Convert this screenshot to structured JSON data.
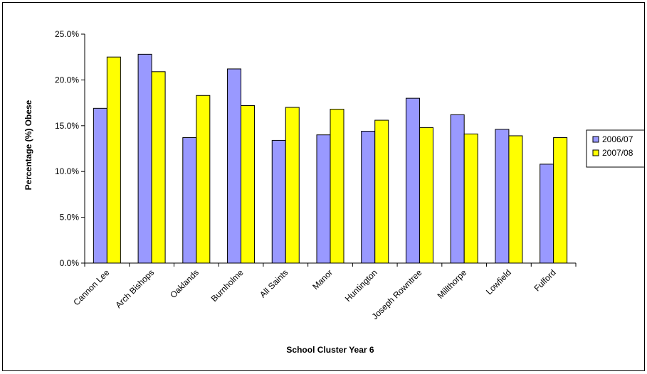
{
  "chart_data": {
    "type": "bar",
    "xlabel": "School Cluster Year 6",
    "ylabel": "Percentage (%) Obese",
    "ylim": [
      0,
      25
    ],
    "y_tick_step": 5,
    "y_tick_format": "percent-1dp",
    "categories": [
      "Cannon Lee",
      "Arch Bishops",
      "Oaklands",
      "Burnholme",
      "All Saints",
      "Manor",
      "Huntington",
      "Joseph Rowntree",
      "Millthorpe",
      "Lowfield",
      "Fulford"
    ],
    "series": [
      {
        "name": "2006/07",
        "color": "#9999ff",
        "values": [
          16.9,
          22.8,
          13.7,
          21.2,
          13.4,
          14.0,
          14.4,
          18.0,
          16.2,
          14.6,
          10.8
        ]
      },
      {
        "name": "2007/08",
        "color": "#ffff00",
        "values": [
          22.5,
          20.9,
          18.3,
          17.2,
          17.0,
          16.8,
          15.6,
          14.8,
          14.1,
          13.9,
          13.7
        ]
      }
    ],
    "grid": false,
    "legend": "right"
  }
}
